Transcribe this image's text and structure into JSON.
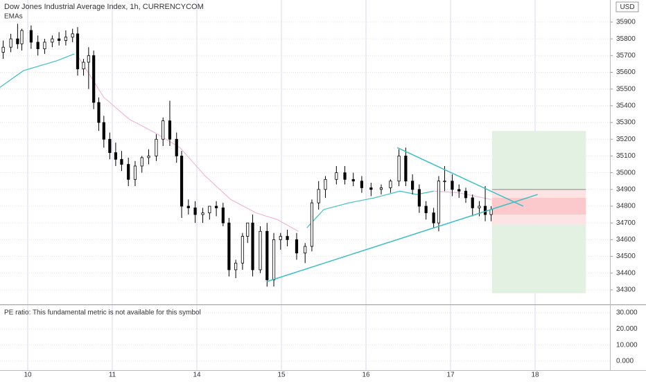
{
  "chart_data": {
    "type": "candlestick",
    "title": "Dow Jones Industrial Average Index, 1h, CURRENCYCOM",
    "subtitle": "EMAs",
    "currency": "USD",
    "xlim": [
      -0.328,
      6.885
    ],
    "xticks": [
      {
        "value": 0,
        "label": "10"
      },
      {
        "value": 1,
        "label": "11"
      },
      {
        "value": 2,
        "label": "14"
      },
      {
        "value": 3,
        "label": "15"
      },
      {
        "value": 4,
        "label": "16"
      },
      {
        "value": 5,
        "label": "17"
      },
      {
        "value": 6,
        "label": "18"
      }
    ],
    "ylim": [
      34213,
      36032
    ],
    "yticks": [
      34300,
      34400,
      34500,
      34600,
      34700,
      34800,
      34900,
      35000,
      35100,
      35200,
      35300,
      35400,
      35500,
      35600,
      35700,
      35800,
      35900
    ],
    "grid": true,
    "up_color": "#ffffff",
    "down_color": "#000000",
    "x": [
      -0.29,
      -0.2,
      -0.12,
      -0.07,
      0.04,
      0.12,
      0.2,
      0.29,
      0.37,
      0.45,
      0.53,
      0.59,
      0.66,
      0.72,
      0.78,
      0.84,
      0.9,
      0.97,
      1.04,
      1.11,
      1.19,
      1.27,
      1.35,
      1.43,
      1.52,
      1.6,
      1.68,
      1.76,
      1.82,
      1.9,
      1.98,
      2.07,
      2.15,
      2.23,
      2.31,
      2.38,
      2.46,
      2.54,
      2.6,
      2.66,
      2.75,
      2.83,
      2.91,
      2.99,
      3.07,
      3.18,
      3.28,
      3.36,
      3.44,
      3.52,
      3.65,
      3.75,
      3.85,
      3.95,
      4.06,
      4.18,
      4.29,
      4.39,
      4.47,
      4.55,
      4.63,
      4.71,
      4.8,
      4.86,
      4.93,
      5.02,
      5.1,
      5.18,
      5.26,
      5.34,
      5.41,
      5.48
    ],
    "open": [
      35720,
      35750,
      35800,
      35770,
      35850,
      35780,
      35740,
      35780,
      35800,
      35790,
      35810,
      35830,
      35620,
      35660,
      35700,
      35420,
      35300,
      35200,
      35120,
      35080,
      35050,
      34960,
      35040,
      35090,
      35100,
      35200,
      35310,
      35200,
      35100,
      34800,
      34790,
      34750,
      34760,
      34800,
      34790,
      34700,
      34420,
      34460,
      34620,
      34700,
      34420,
      34650,
      34360,
      34600,
      34620,
      34600,
      34520,
      34560,
      34820,
      34900,
      34960,
      35000,
      34960,
      34950,
      34910,
      34900,
      34910,
      34950,
      35100,
      34950,
      34900,
      34800,
      34760,
      34700,
      34950,
      34950,
      34900,
      34890,
      34850,
      34790,
      34800,
      34750
    ],
    "high": [
      35790,
      35830,
      35890,
      35860,
      35880,
      35820,
      35800,
      35820,
      35840,
      35850,
      35860,
      35870,
      35680,
      35750,
      35730,
      35450,
      35340,
      35240,
      35180,
      35130,
      35090,
      35070,
      35100,
      35140,
      35230,
      35330,
      35430,
      35240,
      35130,
      34840,
      34830,
      34790,
      34800,
      34830,
      34820,
      34730,
      34480,
      34640,
      34700,
      34750,
      34680,
      34700,
      34640,
      34640,
      34660,
      34640,
      34580,
      34840,
      34950,
      34980,
      35040,
      35040,
      35000,
      34980,
      34940,
      34930,
      34960,
      35140,
      35150,
      34990,
      34930,
      34830,
      34790,
      34980,
      35040,
      34990,
      34930,
      34910,
      34870,
      34830,
      34920,
      34800
    ],
    "low": [
      35680,
      35720,
      35740,
      35730,
      35740,
      35700,
      35710,
      35750,
      35760,
      35760,
      35780,
      35580,
      35580,
      35500,
      35380,
      35250,
      35150,
      35080,
      35040,
      35010,
      34920,
      34920,
      35000,
      35050,
      35070,
      35160,
      35160,
      35060,
      34730,
      34750,
      34700,
      34700,
      34720,
      34740,
      34680,
      34380,
      34370,
      34420,
      34580,
      34380,
      34400,
      34320,
      34320,
      34540,
      34560,
      34480,
      34460,
      34530,
      34780,
      34850,
      34930,
      34930,
      34920,
      34880,
      34860,
      34870,
      34880,
      34920,
      34920,
      34870,
      34760,
      34720,
      34670,
      34650,
      34890,
      34860,
      34850,
      34820,
      34740,
      34740,
      34710,
      34710
    ],
    "close": [
      35750,
      35800,
      35770,
      35850,
      35780,
      35740,
      35780,
      35800,
      35790,
      35810,
      35830,
      35620,
      35660,
      35700,
      35420,
      35300,
      35200,
      35120,
      35080,
      35050,
      34960,
      35040,
      35090,
      35100,
      35200,
      35310,
      35200,
      35100,
      34800,
      34790,
      34750,
      34760,
      34800,
      34790,
      34700,
      34420,
      34460,
      34620,
      34700,
      34420,
      34650,
      34360,
      34600,
      34620,
      34600,
      34520,
      34560,
      34820,
      34900,
      34960,
      35000,
      34960,
      34950,
      34910,
      34900,
      34910,
      34950,
      35100,
      34950,
      34900,
      34800,
      34760,
      34700,
      34950,
      34950,
      34900,
      34890,
      34850,
      34790,
      34800,
      34750,
      34780
    ],
    "lines": [
      {
        "color": "#3cbfc4",
        "x": [
          -0.33,
          -0.05,
          0.15,
          0.35,
          0.55
        ],
        "values": [
          35510,
          35610,
          35640,
          35670,
          35710
        ]
      },
      {
        "color": "#f0b8d8",
        "x": [
          0.6,
          0.9,
          1.2,
          1.5,
          1.8,
          2.1,
          2.4,
          2.7,
          2.95,
          3.2
        ],
        "values": [
          35690,
          35450,
          35320,
          35240,
          35150,
          34980,
          34840,
          34760,
          34720,
          34650
        ]
      },
      {
        "color": "#3cbfc4",
        "x": [
          3.3,
          3.5,
          3.8,
          4.1,
          4.4,
          4.6,
          4.8
        ],
        "values": [
          34670,
          34780,
          34820,
          34850,
          34890,
          34870,
          34890
        ]
      },
      {
        "color": "#f0b8d8",
        "x": [
          4.8,
          5.1,
          5.48
        ],
        "values": [
          34890,
          34880,
          34840
        ]
      }
    ],
    "trendlines": [
      {
        "color": "#3cbfc4",
        "x": [
          4.37,
          5.86
        ],
        "values": [
          35150,
          34800
        ]
      },
      {
        "color": "#3cbfc4",
        "x": [
          2.83,
          6.03
        ],
        "values": [
          34350,
          34870
        ]
      }
    ],
    "zones": [
      {
        "color": "#e3f1e3",
        "x": [
          5.49,
          6.6
        ],
        "values": [
          34900,
          35250
        ]
      },
      {
        "color": "#fde3e3",
        "x": [
          5.49,
          6.6
        ],
        "values": [
          34690,
          34900
        ]
      },
      {
        "color": "#fbc9cb",
        "x": [
          5.49,
          6.6
        ],
        "values": [
          34750,
          34850
        ]
      },
      {
        "color": "#e3f1e3",
        "x": [
          5.49,
          6.6
        ],
        "values": [
          34280,
          34690
        ]
      }
    ],
    "lower_panel": {
      "text": "PE ratio: This fundamental metric is not available for this symbol",
      "ylim": [
        -5.6,
        34.7
      ],
      "yticks": [
        {
          "value": 0,
          "label": "0.000"
        },
        {
          "value": 10,
          "label": "10.000"
        },
        {
          "value": 20,
          "label": "20.000"
        },
        {
          "value": 30,
          "label": "30.000"
        }
      ]
    }
  }
}
